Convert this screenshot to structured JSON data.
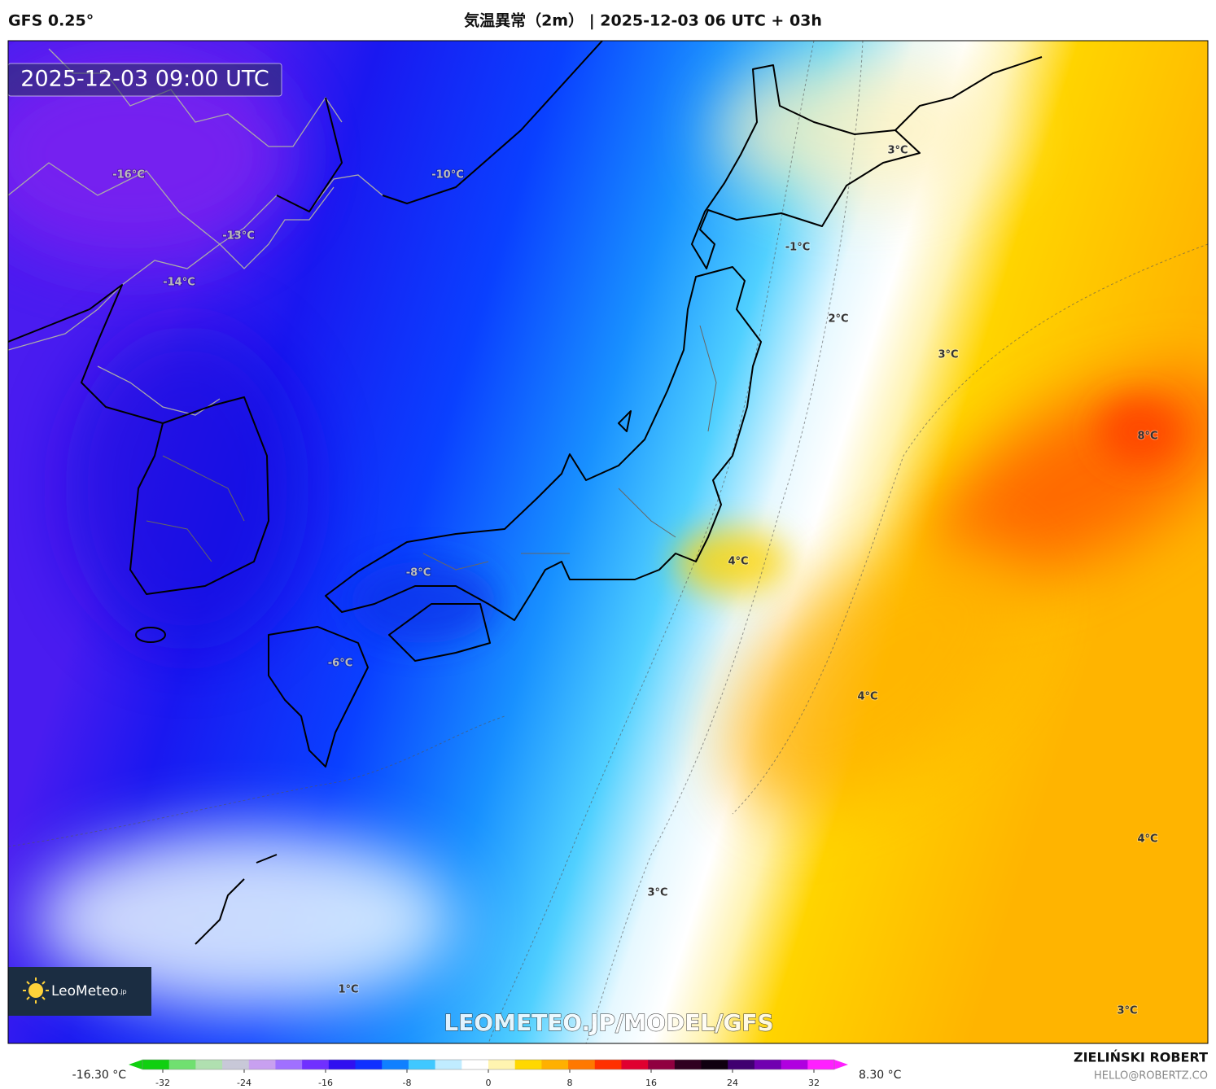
{
  "header": {
    "model": "GFS 0.25°",
    "title": "気温異常（2m） | 2025-12-03 06 UTC + 03h"
  },
  "timestamp": "2025-12-03 09:00 UTC",
  "map_labels": [
    "-16°C",
    "-10°C",
    "-13°C",
    "-14°C",
    "-8°C",
    "-6°C",
    "-1°C",
    "3°C",
    "2°C",
    "3°C",
    "8°C",
    "4°C",
    "4°C",
    "4°C",
    "3°C",
    "1°C",
    "3°C"
  ],
  "logo": {
    "name": "LeoMeteo",
    "suffix": ".jp"
  },
  "watermark": "LEOMETEO.JP/MODEL/GFS",
  "colorbar": {
    "min_label": "-16.30 °C",
    "max_label": "8.30 °C",
    "range": [
      -34,
      34
    ],
    "ticks": [
      -32,
      -24,
      -16,
      -8,
      0,
      8,
      16,
      24,
      32
    ],
    "colors": [
      "#10d010",
      "#70e070",
      "#b0e0b0",
      "#c8c8d8",
      "#c8a0f0",
      "#a070ff",
      "#7030ff",
      "#3010f0",
      "#1030ff",
      "#1080ff",
      "#40c8ff",
      "#c0ecff",
      "#ffffff",
      "#fff4b0",
      "#ffd800",
      "#ffb000",
      "#ff7800",
      "#ff3000",
      "#e00030",
      "#900040",
      "#300020",
      "#100010",
      "#400070",
      "#7000b0",
      "#b000e0",
      "#ff20ff"
    ]
  },
  "credit": {
    "name": "ZIELIŃSKI ROBERT",
    "email": "HELLO@ROBERTZ.CO"
  }
}
